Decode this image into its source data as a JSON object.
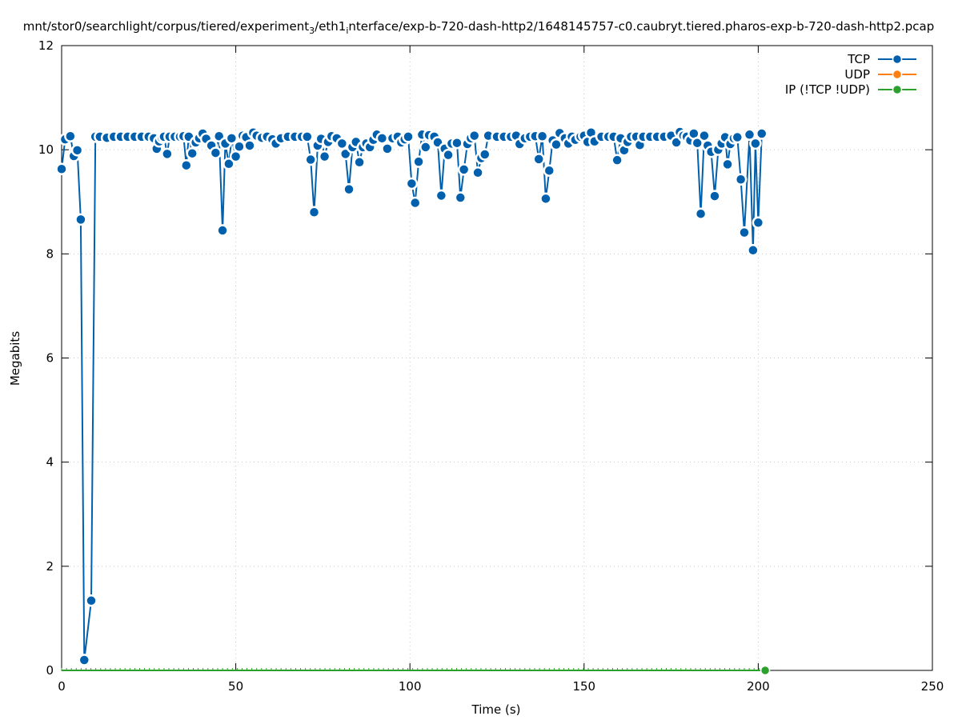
{
  "chart_data": {
    "type": "line",
    "title": "mnt/stor0/searchlight/corpus/tiered/experiment",
    "title_sub1": "3",
    "title_mid": "/eth1",
    "title_sub2": "i",
    "title_end": "nterface/exp-b-720-dash-http2/1648145757-c0.caubryt.tiered.pharos-exp-b-720-dash-http2.pcap",
    "xlabel": "Time (s)",
    "ylabel": "Megabits",
    "xlim": [
      0,
      250
    ],
    "ylim": [
      0,
      12
    ],
    "x_ticks": [
      "0",
      "50",
      "100",
      "150",
      "200",
      "250"
    ],
    "y_ticks": [
      "0",
      "2",
      "4",
      "6",
      "8",
      "10",
      "12"
    ],
    "grid": true,
    "legend_position": "top-right",
    "series": [
      {
        "name": "TCP",
        "color": "#0060ad",
        "points": [
          [
            0.0,
            9.63
          ],
          [
            1.0,
            10.2
          ],
          [
            2.5,
            10.26
          ],
          [
            3.5,
            9.88
          ],
          [
            4.5,
            9.99
          ],
          [
            5.5,
            8.66
          ],
          [
            6.5,
            0.2
          ],
          [
            8.5,
            1.34
          ],
          [
            9.7,
            10.25
          ],
          [
            11,
            10.25
          ],
          [
            13,
            10.23
          ],
          [
            15,
            10.25
          ],
          [
            17,
            10.25
          ],
          [
            19,
            10.25
          ],
          [
            21,
            10.25
          ],
          [
            23,
            10.25
          ],
          [
            25,
            10.25
          ],
          [
            26.5,
            10.22
          ],
          [
            27.3,
            10.02
          ],
          [
            28,
            10.16
          ],
          [
            28.8,
            10.23
          ],
          [
            29.4,
            10.25
          ],
          [
            30.3,
            9.92
          ],
          [
            31,
            10.25
          ],
          [
            32.5,
            10.25
          ],
          [
            34,
            10.25
          ],
          [
            35,
            10.26
          ],
          [
            35.8,
            9.7
          ],
          [
            36.5,
            10.25
          ],
          [
            37.5,
            9.93
          ],
          [
            38.5,
            10.14
          ],
          [
            39.5,
            10.22
          ],
          [
            40.5,
            10.31
          ],
          [
            41.5,
            10.21
          ],
          [
            43,
            10.08
          ],
          [
            44.2,
            9.94
          ],
          [
            45.2,
            10.26
          ],
          [
            46.2,
            8.45
          ],
          [
            47,
            10.12
          ],
          [
            48,
            9.73
          ],
          [
            48.8,
            10.22
          ],
          [
            50,
            9.87
          ],
          [
            51,
            10.06
          ],
          [
            52,
            10.27
          ],
          [
            53,
            10.24
          ],
          [
            54,
            10.08
          ],
          [
            55,
            10.33
          ],
          [
            56,
            10.27
          ],
          [
            57.5,
            10.23
          ],
          [
            59,
            10.25
          ],
          [
            60.5,
            10.2
          ],
          [
            61.5,
            10.12
          ],
          [
            63,
            10.22
          ],
          [
            65,
            10.25
          ],
          [
            67,
            10.25
          ],
          [
            69,
            10.25
          ],
          [
            70.5,
            10.25
          ],
          [
            71.5,
            9.81
          ],
          [
            72.5,
            8.8
          ],
          [
            73.5,
            10.08
          ],
          [
            74.5,
            10.21
          ],
          [
            75.5,
            9.87
          ],
          [
            76.5,
            10.15
          ],
          [
            77.5,
            10.26
          ],
          [
            79,
            10.22
          ],
          [
            80.5,
            10.12
          ],
          [
            81.5,
            9.92
          ],
          [
            82.5,
            9.24
          ],
          [
            83.5,
            10.05
          ],
          [
            84.5,
            10.15
          ],
          [
            85.5,
            9.76
          ],
          [
            86.5,
            10.05
          ],
          [
            87.5,
            10.12
          ],
          [
            88.5,
            10.05
          ],
          [
            89.5,
            10.19
          ],
          [
            90.5,
            10.29
          ],
          [
            92,
            10.22
          ],
          [
            93.5,
            10.02
          ],
          [
            95,
            10.22
          ],
          [
            96.5,
            10.25
          ],
          [
            97.5,
            10.14
          ],
          [
            98.5,
            10.2
          ],
          [
            99.5,
            10.25
          ],
          [
            100.5,
            9.35
          ],
          [
            101.5,
            8.98
          ],
          [
            102.5,
            9.77
          ],
          [
            103.5,
            10.29
          ],
          [
            104.5,
            10.05
          ],
          [
            105.5,
            10.28
          ],
          [
            107,
            10.25
          ],
          [
            108,
            10.14
          ],
          [
            109,
            9.12
          ],
          [
            110,
            10.02
          ],
          [
            111,
            9.9
          ],
          [
            112,
            10.12
          ],
          [
            113.5,
            10.13
          ],
          [
            114.5,
            9.08
          ],
          [
            115.5,
            9.62
          ],
          [
            116.5,
            10.11
          ],
          [
            117.5,
            10.22
          ],
          [
            118.5,
            10.27
          ],
          [
            119.5,
            9.56
          ],
          [
            120.5,
            9.84
          ],
          [
            121.5,
            9.91
          ],
          [
            122.5,
            10.27
          ],
          [
            125,
            10.25
          ],
          [
            127,
            10.25
          ],
          [
            129,
            10.25
          ],
          [
            130.5,
            10.27
          ],
          [
            131.5,
            10.11
          ],
          [
            133,
            10.22
          ],
          [
            134.5,
            10.25
          ],
          [
            136,
            10.26
          ],
          [
            137,
            9.82
          ],
          [
            138,
            10.26
          ],
          [
            139,
            9.06
          ],
          [
            140,
            9.6
          ],
          [
            141,
            10.18
          ],
          [
            142,
            10.1
          ],
          [
            143,
            10.32
          ],
          [
            144.5,
            10.22
          ],
          [
            145.5,
            10.12
          ],
          [
            146.5,
            10.25
          ],
          [
            147.5,
            10.19
          ],
          [
            149,
            10.25
          ],
          [
            150,
            10.27
          ],
          [
            151,
            10.15
          ],
          [
            152,
            10.33
          ],
          [
            153,
            10.16
          ],
          [
            155,
            10.25
          ],
          [
            157,
            10.25
          ],
          [
            158.5,
            10.25
          ],
          [
            159.5,
            9.8
          ],
          [
            160.5,
            10.22
          ],
          [
            161.5,
            9.99
          ],
          [
            162.5,
            10.15
          ],
          [
            163.5,
            10.25
          ],
          [
            165,
            10.25
          ],
          [
            166,
            10.09
          ],
          [
            167,
            10.25
          ],
          [
            169,
            10.25
          ],
          [
            171,
            10.25
          ],
          [
            173,
            10.25
          ],
          [
            175,
            10.27
          ],
          [
            176.5,
            10.14
          ],
          [
            177.5,
            10.34
          ],
          [
            178.5,
            10.27
          ],
          [
            179.5,
            10.25
          ],
          [
            180.5,
            10.18
          ],
          [
            181.5,
            10.31
          ],
          [
            182.5,
            10.13
          ],
          [
            183.5,
            8.77
          ],
          [
            184.5,
            10.27
          ],
          [
            185.5,
            10.08
          ],
          [
            186.5,
            9.96
          ],
          [
            187.5,
            9.11
          ],
          [
            188.5,
            10.0
          ],
          [
            189.5,
            10.12
          ],
          [
            190.5,
            10.24
          ],
          [
            191.2,
            9.72
          ],
          [
            192,
            10.11
          ],
          [
            193,
            10.22
          ],
          [
            194,
            10.24
          ],
          [
            195,
            9.43
          ],
          [
            196,
            8.41
          ],
          [
            197.5,
            10.29
          ],
          [
            198.5,
            8.07
          ],
          [
            199.2,
            10.12
          ],
          [
            200,
            8.6
          ],
          [
            201,
            10.31
          ]
        ]
      },
      {
        "name": "UDP",
        "color": "#ff7f0e",
        "points": []
      },
      {
        "name": "IP (!TCP  !UDP)",
        "color": "#2ca02c",
        "points": [
          [
            0,
            0
          ],
          [
            202,
            0
          ]
        ]
      }
    ]
  }
}
